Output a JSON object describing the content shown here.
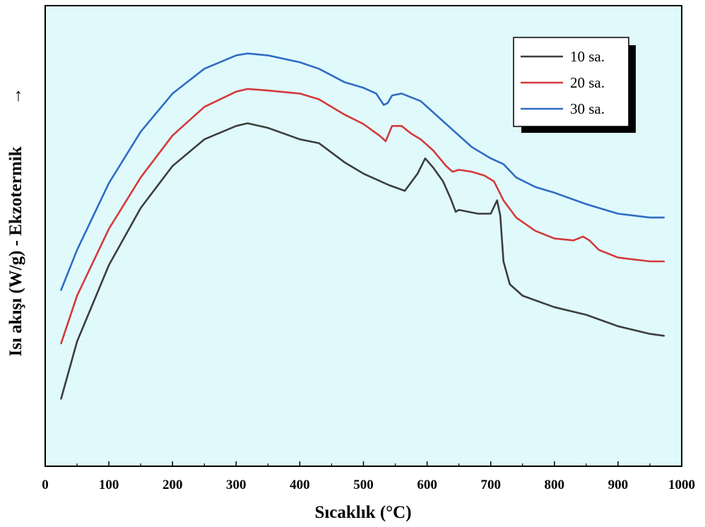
{
  "chart_data": {
    "type": "line",
    "title": "",
    "xlabel": "Sıcaklık (°C)",
    "ylabel": "Isı akışı (W/g) - Ekzotermik",
    "ylabel_arrow": "→",
    "xlim": [
      0,
      1000
    ],
    "ylim": [
      0,
      1
    ],
    "xticks": [
      "0",
      "100",
      "200",
      "300",
      "400",
      "500",
      "600",
      "700",
      "800",
      "900",
      "1000"
    ],
    "yticks_shown": false,
    "grid": false,
    "background": "#e0fafc",
    "legend": {
      "position": "top-right",
      "shadow": true
    },
    "series": [
      {
        "name": "10 sa.",
        "color": "#3d3d3d",
        "points": [
          [
            25,
            0.14
          ],
          [
            50,
            0.29
          ],
          [
            100,
            0.49
          ],
          [
            150,
            0.64
          ],
          [
            200,
            0.75
          ],
          [
            250,
            0.82
          ],
          [
            300,
            0.855
          ],
          [
            318,
            0.862
          ],
          [
            350,
            0.85
          ],
          [
            400,
            0.82
          ],
          [
            430,
            0.81
          ],
          [
            470,
            0.76
          ],
          [
            500,
            0.73
          ],
          [
            540,
            0.7
          ],
          [
            565,
            0.685
          ],
          [
            585,
            0.73
          ],
          [
            597,
            0.77
          ],
          [
            610,
            0.745
          ],
          [
            625,
            0.71
          ],
          [
            637,
            0.665
          ],
          [
            645,
            0.63
          ],
          [
            650,
            0.635
          ],
          [
            680,
            0.625
          ],
          [
            700,
            0.625
          ],
          [
            710,
            0.66
          ],
          [
            715,
            0.62
          ],
          [
            720,
            0.5
          ],
          [
            730,
            0.44
          ],
          [
            750,
            0.41
          ],
          [
            800,
            0.38
          ],
          [
            850,
            0.36
          ],
          [
            900,
            0.33
          ],
          [
            950,
            0.31
          ],
          [
            972,
            0.305
          ]
        ]
      },
      {
        "name": "20 sa.",
        "color": "#d43a3a",
        "points": [
          [
            25,
            0.285
          ],
          [
            50,
            0.41
          ],
          [
            100,
            0.585
          ],
          [
            150,
            0.72
          ],
          [
            200,
            0.83
          ],
          [
            250,
            0.905
          ],
          [
            300,
            0.945
          ],
          [
            318,
            0.952
          ],
          [
            350,
            0.948
          ],
          [
            400,
            0.94
          ],
          [
            430,
            0.925
          ],
          [
            470,
            0.885
          ],
          [
            500,
            0.86
          ],
          [
            525,
            0.83
          ],
          [
            535,
            0.815
          ],
          [
            540,
            0.835
          ],
          [
            545,
            0.855
          ],
          [
            560,
            0.855
          ],
          [
            575,
            0.835
          ],
          [
            590,
            0.82
          ],
          [
            610,
            0.79
          ],
          [
            630,
            0.75
          ],
          [
            640,
            0.735
          ],
          [
            650,
            0.74
          ],
          [
            670,
            0.735
          ],
          [
            690,
            0.725
          ],
          [
            705,
            0.71
          ],
          [
            720,
            0.66
          ],
          [
            740,
            0.615
          ],
          [
            770,
            0.58
          ],
          [
            800,
            0.56
          ],
          [
            830,
            0.555
          ],
          [
            845,
            0.565
          ],
          [
            855,
            0.555
          ],
          [
            870,
            0.53
          ],
          [
            900,
            0.51
          ],
          [
            950,
            0.5
          ],
          [
            972,
            0.5
          ]
        ]
      },
      {
        "name": "30 sa.",
        "color": "#2f6cc4",
        "points": [
          [
            25,
            0.425
          ],
          [
            50,
            0.53
          ],
          [
            100,
            0.705
          ],
          [
            150,
            0.84
          ],
          [
            200,
            0.94
          ],
          [
            250,
            1.005
          ],
          [
            300,
            1.04
          ],
          [
            318,
            1.045
          ],
          [
            350,
            1.04
          ],
          [
            400,
            1.022
          ],
          [
            430,
            1.005
          ],
          [
            470,
            0.97
          ],
          [
            500,
            0.955
          ],
          [
            520,
            0.94
          ],
          [
            532,
            0.91
          ],
          [
            538,
            0.915
          ],
          [
            545,
            0.935
          ],
          [
            560,
            0.94
          ],
          [
            575,
            0.93
          ],
          [
            590,
            0.92
          ],
          [
            610,
            0.89
          ],
          [
            640,
            0.845
          ],
          [
            670,
            0.8
          ],
          [
            700,
            0.77
          ],
          [
            720,
            0.755
          ],
          [
            740,
            0.72
          ],
          [
            770,
            0.695
          ],
          [
            800,
            0.68
          ],
          [
            850,
            0.65
          ],
          [
            900,
            0.625
          ],
          [
            950,
            0.615
          ],
          [
            972,
            0.615
          ]
        ]
      }
    ]
  }
}
